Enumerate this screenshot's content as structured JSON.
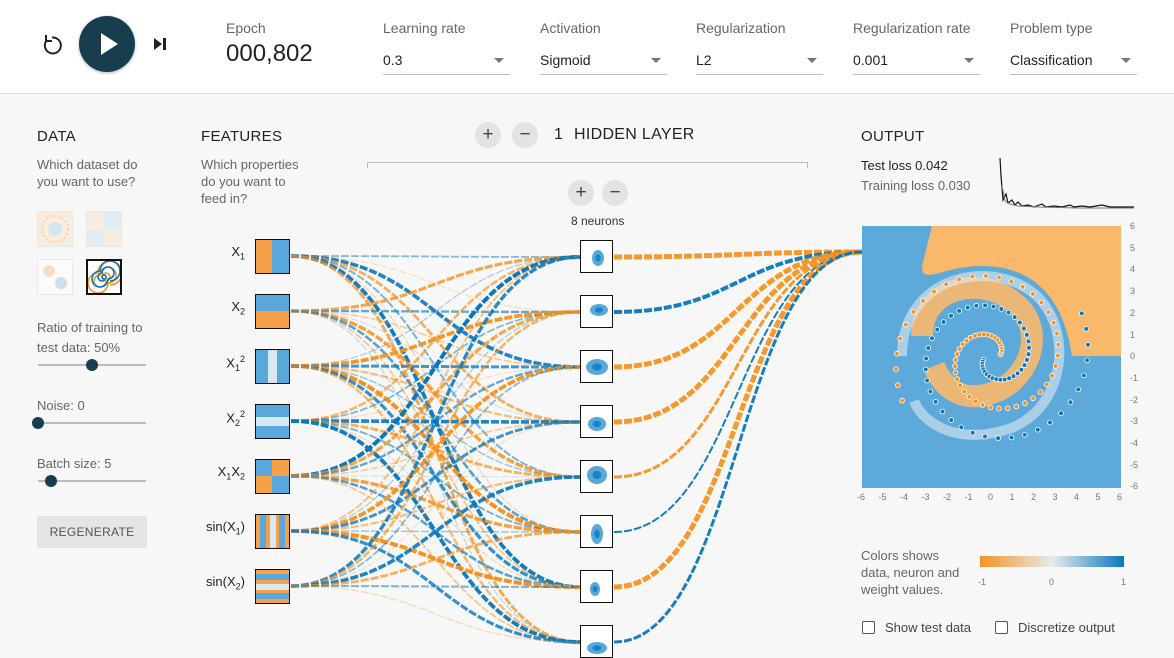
{
  "controls": {
    "reset_icon": "reset-icon",
    "play_icon": "play-icon",
    "step_icon": "step-icon"
  },
  "epoch": {
    "label": "Epoch",
    "value": "000,802"
  },
  "settings": [
    {
      "name": "learning-rate",
      "label": "Learning rate",
      "value": "0.3"
    },
    {
      "name": "activation",
      "label": "Activation",
      "value": "Sigmoid"
    },
    {
      "name": "regularization",
      "label": "Regularization",
      "value": "L2"
    },
    {
      "name": "regularization-rate",
      "label": "Regularization rate",
      "value": "0.001"
    },
    {
      "name": "problem-type",
      "label": "Problem type",
      "value": "Classification"
    }
  ],
  "data_panel": {
    "title": "DATA",
    "question_line1": "Which dataset do",
    "question_line2": "you want to use?",
    "datasets": [
      "circle",
      "xor",
      "gaussian",
      "spiral"
    ],
    "selected_dataset": "spiral",
    "ratio_label_line1": "Ratio of training to",
    "ratio_label_line2": "test data:  50%",
    "ratio_value": 0.5,
    "noise_label": "Noise:  0",
    "noise_value": 0,
    "batch_label": "Batch size:  5",
    "batch_value": 0.12,
    "regenerate_label": "REGENERATE"
  },
  "features_panel": {
    "title": "FEATURES",
    "desc_line1": "Which properties",
    "desc_line2": "do you want to",
    "desc_line3": "feed in?",
    "features": [
      {
        "name": "x1",
        "base": "X",
        "sub": "1",
        "sup": ""
      },
      {
        "name": "x2",
        "base": "X",
        "sub": "2",
        "sup": ""
      },
      {
        "name": "x1-squared",
        "base": "X",
        "sub": "1",
        "sup": "2"
      },
      {
        "name": "x2-squared",
        "base": "X",
        "sub": "2",
        "sup": "2"
      },
      {
        "name": "x1x2",
        "base": "X",
        "sub": "1",
        "mid": "X",
        "sub2": "2"
      },
      {
        "name": "sin-x1",
        "base": "sin(X",
        "sub": "1",
        "tail": ")"
      },
      {
        "name": "sin-x2",
        "base": "sin(X",
        "sub": "2",
        "tail": ")"
      }
    ]
  },
  "hidden": {
    "count": "1",
    "title": "HIDDEN LAYER",
    "add_layer_icon": "plus-icon",
    "remove_layer_icon": "minus-icon",
    "neurons_label": "8 neurons",
    "neuron_count": 8
  },
  "output_panel": {
    "title": "OUTPUT",
    "test_loss_label": "Test loss 0.042",
    "training_loss_label": "Training loss 0.030",
    "x_ticks": [
      "-6",
      "-5",
      "-4",
      "-3",
      "-2",
      "-1",
      "0",
      "1",
      "2",
      "3",
      "4",
      "5",
      "6"
    ],
    "y_ticks": [
      "6",
      "5",
      "4",
      "3",
      "2",
      "1",
      "0",
      "-1",
      "-2",
      "-3",
      "-4",
      "-5",
      "-6"
    ],
    "legend_text_line1": "Colors shows",
    "legend_text_line2": "data, neuron and",
    "legend_text_line3": "weight values.",
    "legend_min": "-1",
    "legend_mid": "0",
    "legend_max": "1",
    "show_test_label": "Show test data",
    "discretize_label": "Discretize output"
  },
  "colors": {
    "orange": "#f59322",
    "blue": "#0877bd",
    "neutral": "#e8eaeb",
    "dark": "#183d4e"
  }
}
